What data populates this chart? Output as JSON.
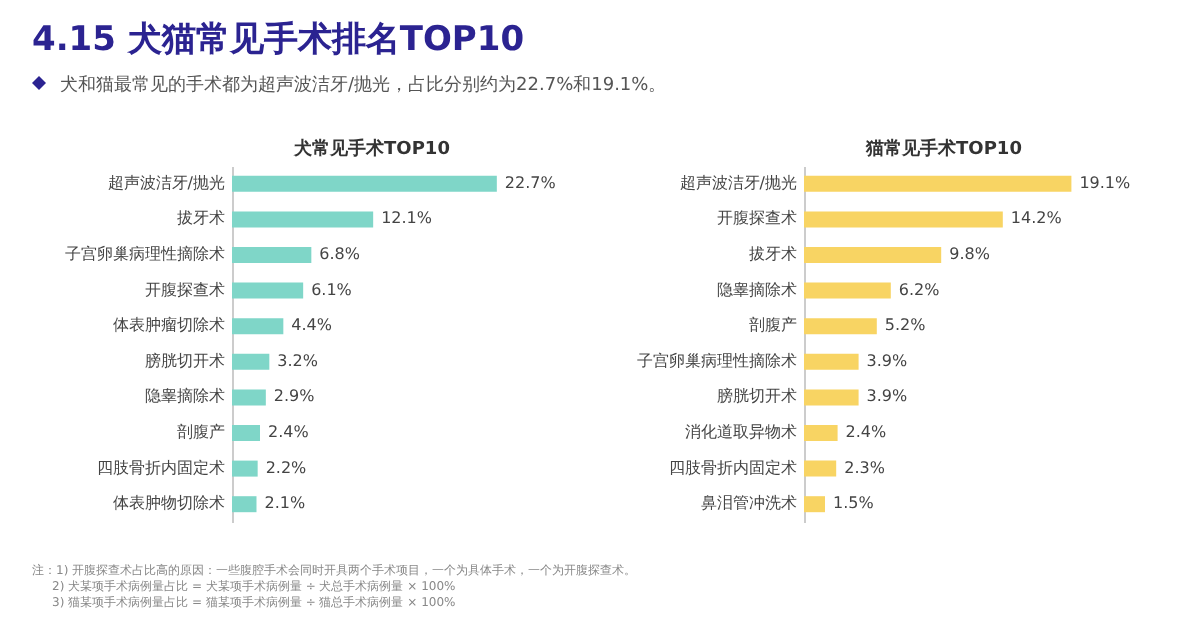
{
  "chart_data": [
    {
      "type": "bar",
      "orientation": "horizontal",
      "title": "犬常见手术TOP10",
      "subtitle": "犬和猫最常见的手术都为超声波洁牙/抛光，占比分别约为22.7%和19.1%。",
      "annotations": [
        "4.15 犬猫常见手术排名TOP10",
        "注：1) 开腹探查术占比高的原因：一些腹腔手术会同时开具两个手术项目，一个为具体手术，一个为开腹探查术。",
        "2) 犬某项手术病例量占比 = 犬某项手术病例量 ÷ 犬总手术病例量 × 100%",
        "3) 猫某项手术病例量占比 = 猫某项手术病例量 ÷ 猫总手术病例量 × 100%"
      ],
      "categories": [
        "超声波洁牙/抛光",
        "拔牙术",
        "子宫卵巢病理性摘除术",
        "开腹探查术",
        "体表肿瘤切除术",
        "膀胱切开术",
        "隐睾摘除术",
        "剖腹产",
        "四肢骨折内固定术",
        "体表肿物切除术"
      ],
      "values": [
        22.7,
        12.1,
        6.8,
        6.1,
        4.4,
        3.2,
        2.9,
        2.4,
        2.2,
        2.1
      ],
      "value_labels": [
        "22.7%",
        "12.1%",
        "6.8%",
        "6.1%",
        "4.4%",
        "3.2%",
        "2.9%",
        "2.4%",
        "2.2%",
        "2.1%"
      ],
      "color": "#7fd6c8",
      "grid": false
    },
    {
      "type": "bar",
      "orientation": "horizontal",
      "title": "猫常见手术TOP10",
      "categories": [
        "超声波洁牙/抛光",
        "开腹探查术",
        "拔牙术",
        "隐睾摘除术",
        "剖腹产",
        "子宫卵巢病理性摘除术",
        "膀胱切开术",
        "消化道取异物术",
        "四肢骨折内固定术",
        "鼻泪管冲洗术"
      ],
      "values": [
        19.1,
        14.2,
        9.8,
        6.2,
        5.2,
        3.9,
        3.9,
        2.4,
        2.3,
        1.5
      ],
      "value_labels": [
        "19.1%",
        "14.2%",
        "9.8%",
        "6.2%",
        "5.2%",
        "3.9%",
        "3.9%",
        "2.4%",
        "2.3%",
        "1.5%"
      ],
      "color": "#f8d463",
      "grid": false
    }
  ]
}
